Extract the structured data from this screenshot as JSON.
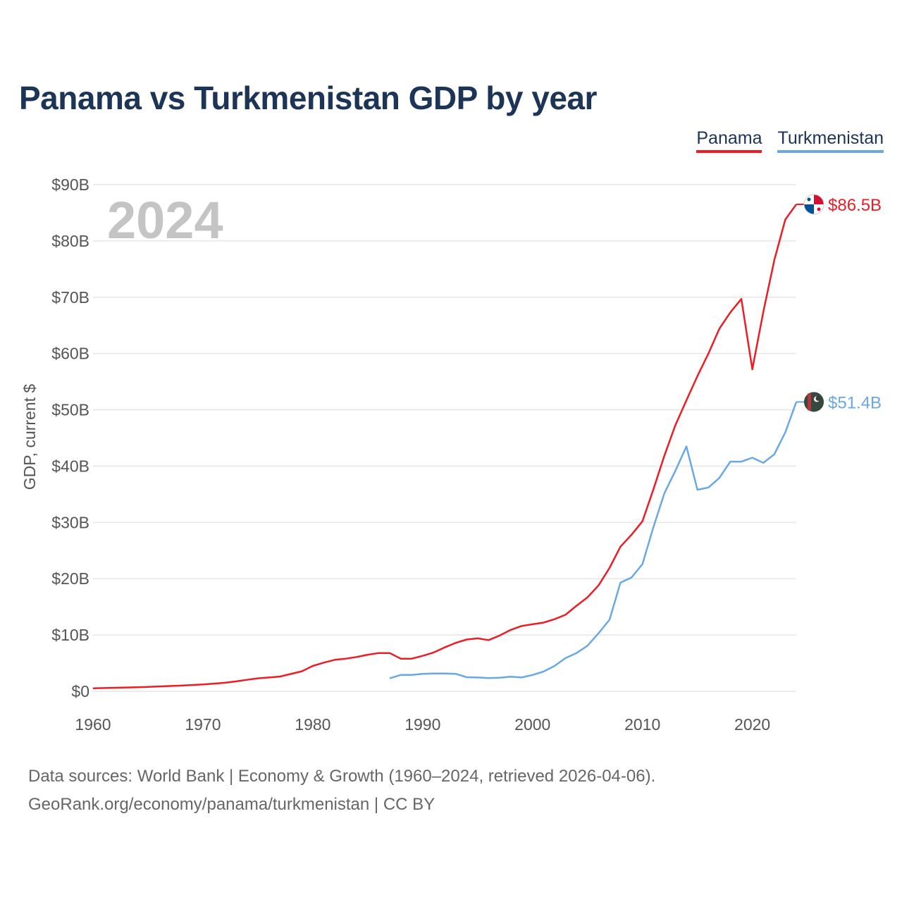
{
  "title": "Panama vs Turkmenistan GDP by year",
  "legend": {
    "panama": "Panama",
    "turkmenistan": "Turkmenistan"
  },
  "footer": {
    "line1": "Data sources: World Bank | Economy & Growth (1960–2024, retrieved 2026-04-06).",
    "line2": "GeoRank.org/economy/panama/turkmenistan | CC BY"
  },
  "colors": {
    "panama": "#ee1c25",
    "turkmenistan": "#6aa8e3",
    "grid": "#e6e6e6"
  },
  "chart_data": {
    "type": "line",
    "title": "Panama vs Turkmenistan GDP by year",
    "year_label": "2024",
    "xlabel": "",
    "ylabel": "GDP, current $",
    "xlim": [
      1960,
      2024
    ],
    "ylim": [
      0,
      90
    ],
    "x_ticks": [
      1960,
      1970,
      1980,
      1990,
      2000,
      2010,
      2020
    ],
    "y_ticks": [
      {
        "value": 0,
        "label": "$0"
      },
      {
        "value": 10,
        "label": "$10B"
      },
      {
        "value": 20,
        "label": "$20B"
      },
      {
        "value": 30,
        "label": "$30B"
      },
      {
        "value": 40,
        "label": "$40B"
      },
      {
        "value": 50,
        "label": "$50B"
      },
      {
        "value": 60,
        "label": "$60B"
      },
      {
        "value": 70,
        "label": "$70B"
      },
      {
        "value": 80,
        "label": "$80B"
      },
      {
        "value": 90,
        "label": "$90B"
      }
    ],
    "grid": true,
    "legend_position": "top-right",
    "series": [
      {
        "name": "Panama",
        "color": "#ee1c25",
        "end_label": "$86.5B",
        "points": [
          [
            1960,
            0.54
          ],
          [
            1961,
            0.58
          ],
          [
            1962,
            0.63
          ],
          [
            1963,
            0.68
          ],
          [
            1964,
            0.73
          ],
          [
            1965,
            0.79
          ],
          [
            1966,
            0.86
          ],
          [
            1967,
            0.94
          ],
          [
            1968,
            1.01
          ],
          [
            1969,
            1.11
          ],
          [
            1970,
            1.22
          ],
          [
            1971,
            1.37
          ],
          [
            1972,
            1.52
          ],
          [
            1973,
            1.75
          ],
          [
            1974,
            2.04
          ],
          [
            1975,
            2.3
          ],
          [
            1976,
            2.45
          ],
          [
            1977,
            2.62
          ],
          [
            1978,
            3.08
          ],
          [
            1979,
            3.56
          ],
          [
            1980,
            4.5
          ],
          [
            1981,
            5.1
          ],
          [
            1982,
            5.6
          ],
          [
            1983,
            5.8
          ],
          [
            1984,
            6.1
          ],
          [
            1985,
            6.5
          ],
          [
            1986,
            6.8
          ],
          [
            1987,
            6.8
          ],
          [
            1988,
            5.8
          ],
          [
            1989,
            5.8
          ],
          [
            1990,
            6.3
          ],
          [
            1991,
            6.9
          ],
          [
            1992,
            7.8
          ],
          [
            1993,
            8.6
          ],
          [
            1994,
            9.2
          ],
          [
            1995,
            9.4
          ],
          [
            1996,
            9.1
          ],
          [
            1997,
            9.9
          ],
          [
            1998,
            10.9
          ],
          [
            1999,
            11.6
          ],
          [
            2000,
            11.9
          ],
          [
            2001,
            12.2
          ],
          [
            2002,
            12.8
          ],
          [
            2003,
            13.6
          ],
          [
            2004,
            15.2
          ],
          [
            2005,
            16.7
          ],
          [
            2006,
            18.8
          ],
          [
            2007,
            21.9
          ],
          [
            2008,
            25.7
          ],
          [
            2009,
            27.8
          ],
          [
            2010,
            30.2
          ],
          [
            2011,
            35.9
          ],
          [
            2012,
            41.9
          ],
          [
            2013,
            47.3
          ],
          [
            2014,
            51.7
          ],
          [
            2015,
            56.0
          ],
          [
            2016,
            60.0
          ],
          [
            2017,
            64.4
          ],
          [
            2018,
            67.3
          ],
          [
            2019,
            69.7
          ],
          [
            2020,
            57.2
          ],
          [
            2021,
            67.4
          ],
          [
            2022,
            76.6
          ],
          [
            2023,
            83.8
          ],
          [
            2024,
            86.5
          ]
        ]
      },
      {
        "name": "Turkmenistan",
        "color": "#6aa8e3",
        "end_label": "$51.4B",
        "points": [
          [
            1987,
            2.3
          ],
          [
            1988,
            2.9
          ],
          [
            1989,
            2.9
          ],
          [
            1990,
            3.1
          ],
          [
            1991,
            3.15
          ],
          [
            1992,
            3.15
          ],
          [
            1993,
            3.1
          ],
          [
            1994,
            2.5
          ],
          [
            1995,
            2.45
          ],
          [
            1996,
            2.35
          ],
          [
            1997,
            2.4
          ],
          [
            1998,
            2.6
          ],
          [
            1999,
            2.45
          ],
          [
            2000,
            2.9
          ],
          [
            2001,
            3.5
          ],
          [
            2002,
            4.5
          ],
          [
            2003,
            5.9
          ],
          [
            2004,
            6.8
          ],
          [
            2005,
            8.1
          ],
          [
            2006,
            10.3
          ],
          [
            2007,
            12.7
          ],
          [
            2008,
            19.3
          ],
          [
            2009,
            20.2
          ],
          [
            2010,
            22.6
          ],
          [
            2011,
            29.2
          ],
          [
            2012,
            35.2
          ],
          [
            2013,
            39.2
          ],
          [
            2014,
            43.5
          ],
          [
            2015,
            35.8
          ],
          [
            2016,
            36.2
          ],
          [
            2017,
            37.9
          ],
          [
            2018,
            40.8
          ],
          [
            2019,
            40.8
          ],
          [
            2020,
            41.5
          ],
          [
            2021,
            40.6
          ],
          [
            2022,
            42.1
          ],
          [
            2023,
            46.0
          ],
          [
            2024,
            51.4
          ]
        ]
      }
    ]
  }
}
